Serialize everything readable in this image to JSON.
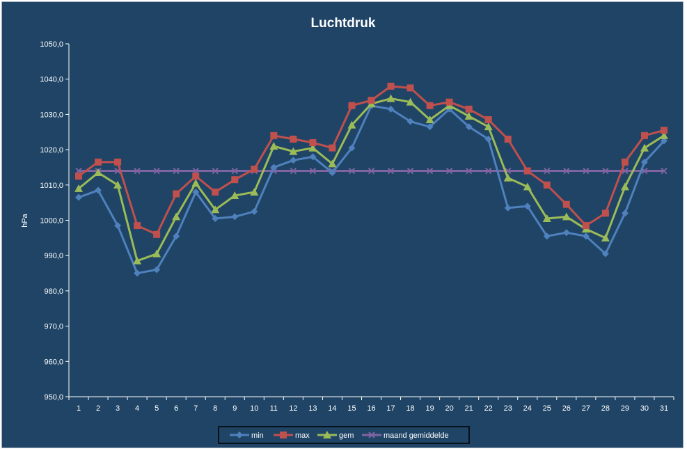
{
  "chart_data": {
    "type": "line",
    "title": "Luchtdruk",
    "xlabel": "",
    "ylabel": "hPa",
    "ylim": [
      950,
      1050
    ],
    "ytick_step": 10,
    "ytick_labels": [
      "950,0",
      "960,0",
      "970,0",
      "980,0",
      "990,0",
      "1000,0",
      "1010,0",
      "1020,0",
      "1030,0",
      "1040,0",
      "1050,0"
    ],
    "x": [
      1,
      2,
      3,
      4,
      5,
      6,
      7,
      8,
      9,
      10,
      11,
      12,
      13,
      14,
      15,
      16,
      17,
      18,
      19,
      20,
      21,
      22,
      23,
      24,
      25,
      26,
      27,
      28,
      29,
      30,
      31
    ],
    "grid": false,
    "legend_position": "bottom",
    "series": [
      {
        "name": "min",
        "color": "#4f81bd",
        "marker": "diamond",
        "values": [
          1006.5,
          1008.5,
          998.5,
          985.0,
          986.0,
          995.5,
          1008.0,
          1000.5,
          1001.0,
          1002.5,
          1015.0,
          1017.0,
          1018.0,
          1013.5,
          1020.5,
          1032.5,
          1031.5,
          1028.0,
          1026.5,
          1031.5,
          1026.5,
          1023.0,
          1003.5,
          1004.0,
          995.5,
          996.5,
          995.5,
          990.5,
          1002.0,
          1016.5,
          1022.5
        ]
      },
      {
        "name": "max",
        "color": "#c0504d",
        "marker": "square",
        "values": [
          1012.5,
          1016.5,
          1016.5,
          998.5,
          996.0,
          1007.5,
          1012.5,
          1008.0,
          1011.5,
          1014.5,
          1024.0,
          1023.0,
          1022.0,
          1020.5,
          1032.5,
          1034.0,
          1038.0,
          1037.5,
          1032.5,
          1033.5,
          1031.5,
          1028.5,
          1023.0,
          1014.0,
          1010.0,
          1004.5,
          998.5,
          1002.0,
          1016.5,
          1024.0,
          1025.5
        ]
      },
      {
        "name": "gem",
        "color": "#9bbb59",
        "marker": "triangle",
        "values": [
          1009.0,
          1013.5,
          1010.0,
          988.5,
          990.5,
          1001.0,
          1010.5,
          1003.0,
          1007.0,
          1008.0,
          1021.0,
          1019.5,
          1020.5,
          1016.0,
          1027.0,
          1033.0,
          1034.5,
          1033.5,
          1028.5,
          1032.5,
          1029.5,
          1026.5,
          1012.0,
          1009.5,
          1000.5,
          1001.0,
          997.5,
          995.0,
          1009.5,
          1020.5,
          1024.0
        ]
      },
      {
        "name": "maand gemiddelde",
        "color": "#8064a2",
        "marker": "x",
        "values": [
          1014.0,
          1014.0,
          1014.0,
          1014.0,
          1014.0,
          1014.0,
          1014.0,
          1014.0,
          1014.0,
          1014.0,
          1014.0,
          1014.0,
          1014.0,
          1014.0,
          1014.0,
          1014.0,
          1014.0,
          1014.0,
          1014.0,
          1014.0,
          1014.0,
          1014.0,
          1014.0,
          1014.0,
          1014.0,
          1014.0,
          1014.0,
          1014.0,
          1014.0,
          1014.0,
          1014.0
        ]
      }
    ]
  }
}
